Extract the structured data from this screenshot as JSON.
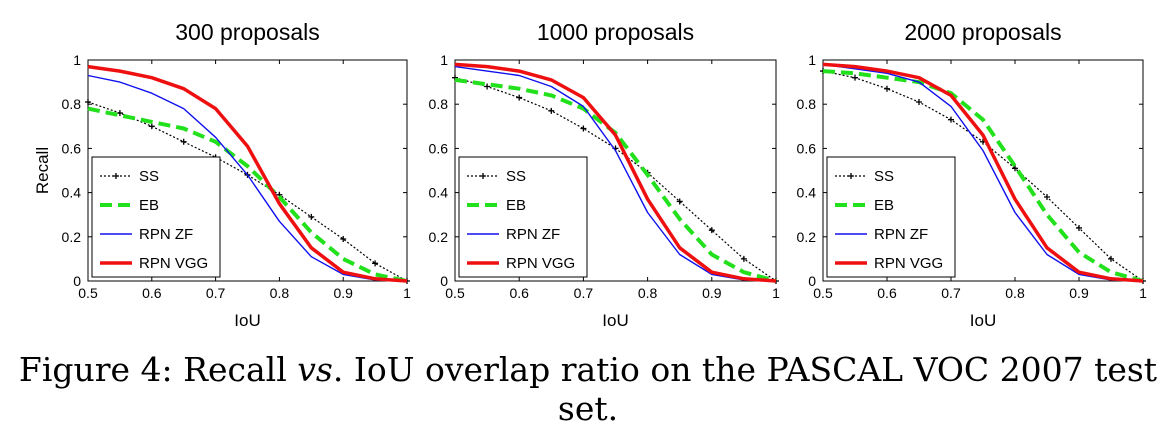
{
  "chart_data": [
    {
      "type": "line",
      "title": "300 proposals",
      "xlabel": "IoU",
      "ylabel": "Recall",
      "xlim": [
        0.5,
        1
      ],
      "ylim": [
        0,
        1
      ],
      "xticks": [
        "0.5",
        "0.6",
        "0.7",
        "0.8",
        "0.9",
        "1"
      ],
      "yticks": [
        "0",
        "0.2",
        "0.4",
        "0.6",
        "0.8",
        "1"
      ],
      "x": [
        0.5,
        0.55,
        0.6,
        0.65,
        0.7,
        0.75,
        0.8,
        0.85,
        0.9,
        0.95,
        1.0
      ],
      "series": [
        {
          "name": "SS",
          "values": [
            0.81,
            0.76,
            0.7,
            0.63,
            0.56,
            0.48,
            0.39,
            0.29,
            0.19,
            0.08,
            0.0
          ]
        },
        {
          "name": "EB",
          "values": [
            0.78,
            0.75,
            0.72,
            0.69,
            0.63,
            0.52,
            0.38,
            0.22,
            0.1,
            0.03,
            0.0
          ]
        },
        {
          "name": "RPN ZF",
          "values": [
            0.93,
            0.9,
            0.85,
            0.78,
            0.65,
            0.48,
            0.27,
            0.11,
            0.03,
            0.005,
            0.0
          ]
        },
        {
          "name": "RPN VGG",
          "values": [
            0.97,
            0.95,
            0.92,
            0.87,
            0.78,
            0.61,
            0.35,
            0.15,
            0.04,
            0.01,
            0.0
          ]
        }
      ]
    },
    {
      "type": "line",
      "title": "1000 proposals",
      "xlabel": "IoU",
      "ylabel": "",
      "xlim": [
        0.5,
        1
      ],
      "ylim": [
        0,
        1
      ],
      "xticks": [
        "0.5",
        "0.6",
        "0.7",
        "0.8",
        "0.9",
        "1"
      ],
      "yticks": [
        "0",
        "0.2",
        "0.4",
        "0.6",
        "0.8",
        "1"
      ],
      "x": [
        0.5,
        0.55,
        0.6,
        0.65,
        0.7,
        0.75,
        0.8,
        0.85,
        0.9,
        0.95,
        1.0
      ],
      "series": [
        {
          "name": "SS",
          "values": [
            0.92,
            0.88,
            0.83,
            0.77,
            0.69,
            0.6,
            0.49,
            0.36,
            0.23,
            0.1,
            0.0
          ]
        },
        {
          "name": "EB",
          "values": [
            0.91,
            0.89,
            0.87,
            0.84,
            0.78,
            0.67,
            0.48,
            0.28,
            0.12,
            0.04,
            0.0
          ]
        },
        {
          "name": "RPN ZF",
          "values": [
            0.97,
            0.95,
            0.93,
            0.88,
            0.79,
            0.59,
            0.31,
            0.12,
            0.03,
            0.005,
            0.0
          ]
        },
        {
          "name": "RPN VGG",
          "values": [
            0.98,
            0.97,
            0.95,
            0.91,
            0.83,
            0.66,
            0.37,
            0.15,
            0.04,
            0.01,
            0.0
          ]
        }
      ]
    },
    {
      "type": "line",
      "title": "2000 proposals",
      "xlabel": "IoU",
      "ylabel": "",
      "xlim": [
        0.5,
        1
      ],
      "ylim": [
        0,
        1
      ],
      "xticks": [
        "0.5",
        "0.6",
        "0.7",
        "0.8",
        "0.9",
        "1"
      ],
      "yticks": [
        "0",
        "0.2",
        "0.4",
        "0.6",
        "0.8",
        "1"
      ],
      "x": [
        0.5,
        0.55,
        0.6,
        0.65,
        0.7,
        0.75,
        0.8,
        0.85,
        0.9,
        0.95,
        1.0
      ],
      "series": [
        {
          "name": "SS",
          "values": [
            0.95,
            0.92,
            0.87,
            0.81,
            0.73,
            0.63,
            0.51,
            0.38,
            0.24,
            0.1,
            0.0
          ]
        },
        {
          "name": "EB",
          "values": [
            0.95,
            0.94,
            0.92,
            0.9,
            0.85,
            0.73,
            0.52,
            0.3,
            0.13,
            0.04,
            0.0
          ]
        },
        {
          "name": "RPN ZF",
          "values": [
            0.98,
            0.96,
            0.94,
            0.9,
            0.79,
            0.59,
            0.31,
            0.12,
            0.03,
            0.005,
            0.0
          ]
        },
        {
          "name": "RPN VGG",
          "values": [
            0.98,
            0.97,
            0.95,
            0.92,
            0.84,
            0.66,
            0.37,
            0.15,
            0.04,
            0.01,
            0.0
          ]
        }
      ]
    }
  ],
  "series_styles": {
    "SS": {
      "color": "#000000"
    },
    "EB": {
      "color": "#22e01c"
    },
    "RPN ZF": {
      "color": "#1010ee"
    },
    "RPN VGG": {
      "color": "#ee1010"
    }
  },
  "caption": {
    "prefix": "Figure 4: Recall ",
    "italic": "vs",
    "suffix": ". IoU overlap ratio on the PASCAL VOC 2007 test set."
  }
}
